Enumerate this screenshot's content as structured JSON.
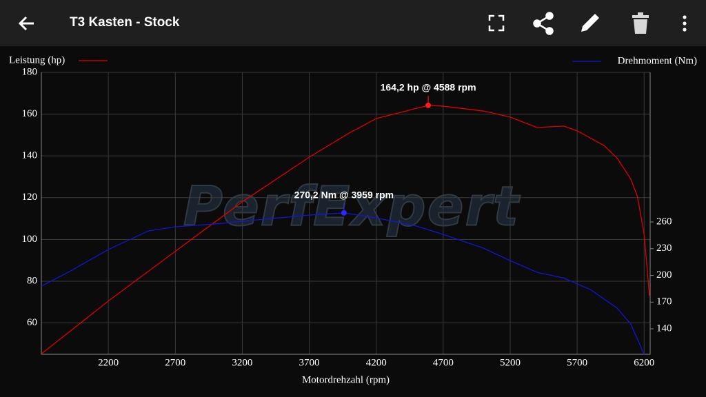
{
  "app_bar": {
    "title": "T3 Kasten - Stock"
  },
  "chart_data": {
    "type": "line",
    "watermark": "PerfExpert",
    "xlabel": "Motordrehzahl (rpm)",
    "xlim": [
      1700,
      6245
    ],
    "xticks": [
      2200,
      2700,
      3200,
      3700,
      4200,
      4700,
      5200,
      5700,
      6200
    ],
    "ylim": [
      45,
      180
    ],
    "yticks": [
      60,
      80,
      100,
      120,
      140,
      160,
      180
    ],
    "y2lim": [
      111.4,
      428
    ],
    "y2ticks": [
      140,
      170,
      200,
      230,
      260
    ],
    "grid": true,
    "series": [
      {
        "name": "Leistung (hp)",
        "color": "#e00000",
        "x": [
          1700,
          2200,
          2700,
          3200,
          3700,
          4000,
          4200,
          4588,
          4700,
          5000,
          5200,
          5400,
          5600,
          5700,
          5900,
          6000,
          6100,
          6150,
          6200,
          6240
        ],
        "values": [
          45.2,
          70.5,
          94.3,
          118,
          139.4,
          151,
          157.9,
          164.2,
          163.8,
          161.5,
          158.6,
          153.6,
          154.3,
          152,
          145,
          138.8,
          129,
          120.6,
          102.5,
          73
        ]
      },
      {
        "name": "Drehmoment (Nm)",
        "color": "#1414d8",
        "axis": "y2",
        "x": [
          1700,
          1900,
          2200,
          2500,
          2700,
          3000,
          3200,
          3700,
          3959,
          4200,
          4500,
          4700,
          5000,
          5200,
          5400,
          5600,
          5800,
          6000,
          6100,
          6200
        ],
        "values": [
          188,
          203.5,
          229,
          250,
          254.6,
          257.7,
          260.8,
          267.7,
          270.2,
          264.6,
          255.4,
          246,
          230.6,
          216.6,
          203.5,
          197,
          184,
          163,
          145.4,
          111.4
        ]
      }
    ],
    "annotations": [
      {
        "text": "164,2 hp @ 4588 rpm",
        "x": 4588,
        "y": 164.2,
        "color": "#ff1a1a"
      },
      {
        "text": "270,2 Nm @ 3959 rpm",
        "x": 3959,
        "y": 270.2,
        "axis": "y2",
        "color": "#2a2aff"
      }
    ]
  }
}
